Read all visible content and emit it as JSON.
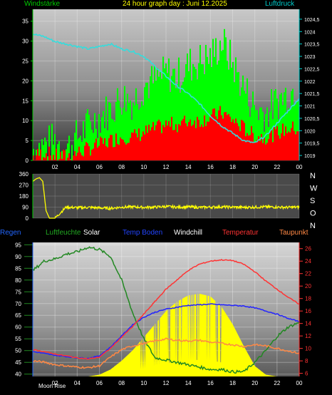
{
  "header": {
    "left_label": "Windstärke",
    "title": "24 hour graph day : Juni 12.2025",
    "right_label": "Luftdruck"
  },
  "colors": {
    "wind_gust": "#00ff00",
    "wind_avg": "#ff0000",
    "pressure": "#33dddd",
    "direction": "#ffff00",
    "humidity": "#228822",
    "solar": "#ffff00",
    "temp_ground": "#2222ff",
    "windchill": "#ffffff",
    "temperature": "#ff3333",
    "dewpoint": "#ff8844",
    "left_axis": "#00cc00",
    "right_axis": "#00cccc",
    "bottom_right_axis": "#ff3333",
    "bottom_left_axis": "#2266ff"
  },
  "legend_row": {
    "regen": "Regen",
    "luftfeuchte": "Luftfeuchte",
    "solar": "Solar",
    "temp_boden": "Temp Boden",
    "windchill": "Windchill",
    "temperatur": "Temperatur",
    "taupunkt": "Taupunkt"
  },
  "moon_label": "Moon Rise",
  "chart_data": [
    {
      "type": "line",
      "name": "wind_and_pressure",
      "x_ticks": [
        "02",
        "04",
        "06",
        "08",
        "10",
        "12",
        "14",
        "16",
        "18",
        "20",
        "22",
        "00"
      ],
      "y_left_ticks": [
        "0",
        "5",
        "10",
        "15",
        "20",
        "25",
        "30",
        "35"
      ],
      "ylim_left": [
        0,
        38
      ],
      "y_right_ticks": [
        "1019",
        "1019,5",
        "1020",
        "1020,5",
        "1021",
        "1021,5",
        "1022",
        "1022,5",
        "1023",
        "1023,5",
        "1024",
        "1024,5"
      ],
      "ylim_right": [
        1018.8,
        1024.9
      ],
      "series": [
        {
          "key": "gust",
          "hours": [
            0,
            1,
            2,
            3,
            4,
            5,
            6,
            7,
            8,
            9,
            10,
            11,
            12,
            13,
            14,
            15,
            16,
            17,
            18,
            19,
            20,
            21,
            22,
            23,
            24
          ],
          "values": [
            3,
            4,
            5,
            3,
            6,
            9,
            11,
            13,
            16,
            15,
            19,
            20,
            22,
            21,
            24,
            25,
            26,
            30,
            24,
            18,
            13,
            12,
            15,
            17,
            19
          ]
        },
        {
          "key": "avg",
          "hours": [
            0,
            1,
            2,
            3,
            4,
            5,
            6,
            7,
            8,
            9,
            10,
            11,
            12,
            13,
            14,
            15,
            16,
            17,
            18,
            19,
            20,
            21,
            22,
            23,
            24
          ],
          "values": [
            1,
            2,
            1,
            1,
            2,
            3,
            4,
            5,
            6,
            6,
            7,
            8,
            9,
            9,
            10,
            10,
            11,
            12,
            10,
            8,
            6,
            6,
            7,
            8,
            8
          ]
        },
        {
          "key": "pressure",
          "hours": [
            0,
            1,
            2,
            3,
            4,
            5,
            6,
            7,
            8,
            9,
            10,
            11,
            12,
            13,
            14,
            15,
            16,
            17,
            18,
            19,
            20,
            21,
            22,
            23,
            24
          ],
          "values": [
            1023.9,
            1023.8,
            1023.6,
            1023.5,
            1023.4,
            1023.3,
            1023.4,
            1023.5,
            1023.3,
            1023.2,
            1023.0,
            1022.6,
            1022.2,
            1021.8,
            1021.5,
            1021.1,
            1020.6,
            1020.2,
            1019.9,
            1019.6,
            1019.5,
            1019.8,
            1020.3,
            1020.8,
            1021.3
          ]
        }
      ]
    },
    {
      "type": "line",
      "name": "wind_direction",
      "y_ticks": [
        "360",
        "270",
        "180",
        "90",
        "0"
      ],
      "y_side_labels": [
        "N",
        "W",
        "S",
        "O",
        "N"
      ],
      "ylim": [
        0,
        360
      ],
      "series": [
        {
          "key": "direction",
          "hours": [
            0,
            0.3,
            0.6,
            0.9,
            1.2,
            1.5,
            2,
            3,
            4,
            5,
            6,
            7,
            8,
            9,
            10,
            11,
            12,
            13,
            14,
            15,
            16,
            17,
            18,
            19,
            20,
            21,
            22,
            23,
            24
          ],
          "values": [
            300,
            320,
            330,
            300,
            60,
            0,
            0,
            90,
            85,
            88,
            84,
            80,
            90,
            92,
            88,
            90,
            95,
            90,
            92,
            88,
            90,
            92,
            90,
            88,
            90,
            92,
            90,
            88,
            90
          ]
        }
      ]
    },
    {
      "type": "line",
      "name": "temperature_humidity_solar",
      "x_ticks": [
        "02",
        "04",
        "06",
        "08",
        "10",
        "12",
        "14",
        "16",
        "18",
        "20",
        "22",
        "00"
      ],
      "y_left_ticks": [
        "40",
        "45",
        "50",
        "55",
        "60",
        "65",
        "70",
        "75",
        "80",
        "85",
        "90",
        "95"
      ],
      "ylim_left": [
        39,
        96
      ],
      "y_right_ticks": [
        "6",
        "8",
        "10",
        "12",
        "14",
        "16",
        "18",
        "20",
        "22",
        "24",
        "26"
      ],
      "ylim_right": [
        5.5,
        27
      ],
      "series": [
        {
          "key": "humidity",
          "hours": [
            0,
            1,
            2,
            3,
            4,
            5,
            6,
            7,
            8,
            9,
            10,
            11,
            12,
            13,
            14,
            15,
            16,
            17,
            18,
            19,
            20,
            21,
            22,
            23,
            24
          ],
          "values": [
            84,
            88,
            89,
            91,
            92,
            94,
            93,
            90,
            80,
            66,
            55,
            47,
            46,
            45,
            44,
            43,
            42,
            42,
            41,
            41,
            45,
            50,
            56,
            60,
            62
          ]
        },
        {
          "key": "solar",
          "hours": [
            0,
            5,
            6,
            7,
            8,
            9,
            10,
            11,
            12,
            13,
            14,
            15,
            16,
            17,
            18,
            19,
            20,
            21,
            22,
            23,
            24
          ],
          "values": [
            0,
            0,
            0.02,
            0.08,
            0.18,
            0.3,
            0.45,
            0.6,
            0.75,
            0.86,
            0.93,
            0.95,
            0.92,
            0.8,
            0.6,
            0.35,
            0.12,
            0.02,
            0,
            0,
            0
          ]
        },
        {
          "key": "temp_ground",
          "hours": [
            0,
            1,
            2,
            3,
            4,
            5,
            6,
            7,
            8,
            9,
            10,
            11,
            12,
            13,
            14,
            15,
            16,
            17,
            18,
            19,
            20,
            21,
            22,
            23,
            24
          ],
          "values": [
            9.5,
            9.2,
            8.9,
            8.7,
            8.5,
            8.4,
            8.8,
            10.2,
            12.0,
            13.8,
            15.0,
            15.8,
            16.3,
            16.6,
            16.9,
            17.0,
            17.1,
            17.0,
            16.9,
            16.8,
            16.5,
            16.0,
            15.5,
            14.8,
            14.3
          ]
        },
        {
          "key": "temperature",
          "hours": [
            0,
            1,
            2,
            3,
            4,
            5,
            6,
            7,
            8,
            9,
            10,
            11,
            12,
            13,
            14,
            15,
            16,
            17,
            18,
            19,
            20,
            21,
            22,
            23,
            24
          ],
          "values": [
            9.8,
            9.5,
            9.1,
            8.8,
            8.5,
            8.3,
            8.6,
            10.0,
            11.8,
            13.5,
            15.5,
            17.5,
            19.5,
            21.0,
            22.5,
            23.5,
            24.0,
            24.2,
            24.1,
            23.5,
            22.3,
            20.8,
            19.5,
            18.2,
            17.1
          ]
        },
        {
          "key": "dewpoint",
          "hours": [
            0,
            1,
            2,
            3,
            4,
            5,
            6,
            7,
            8,
            9,
            10,
            11,
            12,
            13,
            14,
            15,
            16,
            17,
            18,
            19,
            20,
            21,
            22,
            23,
            24
          ],
          "values": [
            8.0,
            7.8,
            7.4,
            7.2,
            7.0,
            6.9,
            7.2,
            8.6,
            9.8,
            10.4,
            10.8,
            11.2,
            11.5,
            11.3,
            11.2,
            11.3,
            11.0,
            10.8,
            10.6,
            10.3,
            10.6,
            10.4,
            10.0,
            9.6,
            9.2
          ]
        }
      ]
    }
  ]
}
